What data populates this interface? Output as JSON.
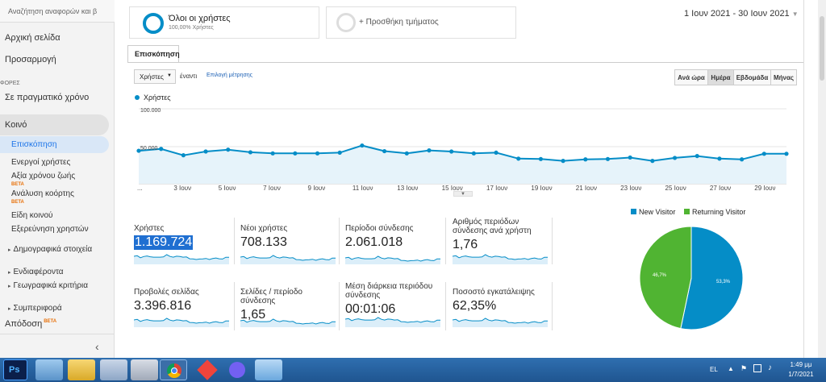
{
  "sidebar": {
    "search_placeholder": "Αναζήτηση αναφορών και β",
    "home": "Αρχική σελίδα",
    "customization": "Προσαρμογή",
    "reports_heading": "ΦΟΡΕΣ",
    "realtime": "Σε πραγματικό χρόνο",
    "audience": "Κοινό",
    "items": [
      {
        "label": "Επισκόπηση",
        "beta": ""
      },
      {
        "label": "Ενεργοί χρήστες",
        "beta": ""
      },
      {
        "label": "Αξία χρόνου ζωής",
        "beta": "BETA"
      },
      {
        "label": "Ανάλυση κοόρτης",
        "beta": "BETA"
      },
      {
        "label": "Είδη κοινού",
        "beta": ""
      },
      {
        "label": "Εξερεύνηση χρηστών",
        "beta": ""
      },
      {
        "label": "Δημογραφικά στοιχεία",
        "beta": ""
      },
      {
        "label": "Ενδιαφέροντα",
        "beta": ""
      },
      {
        "label": "Γεωγραφικά κριτήρια",
        "beta": ""
      },
      {
        "label": "Συμπεριφορά",
        "beta": ""
      }
    ],
    "attribution": "Απόδοση",
    "attribution_beta": "BETA",
    "collapse": "‹"
  },
  "segments": {
    "all_users": "Όλοι οι χρήστες",
    "all_users_sub": "100,00% Χρήστες",
    "add_segment": "+ Προσθήκη τμήματος"
  },
  "date_range": "1 Ιουν 2021 - 30 Ιουν 2021",
  "tab_overview": "Επισκόπηση",
  "metric_select": "Χρήστες",
  "vs_label": "έναντι",
  "choose_metric": "Επιλογή μέτρησης",
  "period_buttons": [
    "Ανά ώρα",
    "Ημέρα",
    "Εβδομάδα",
    "Μήνας"
  ],
  "period_selected": "Ημέρα",
  "chart_data": {
    "type": "area",
    "legend": "Χρήστες",
    "ytick_labels": [
      "100.000",
      "50.000"
    ],
    "ylim": [
      0,
      100000
    ],
    "x_labels": [
      "...",
      "3 Ιουν",
      "5 Ιουν",
      "7 Ιουν",
      "9 Ιουν",
      "11 Ιουν",
      "13 Ιουν",
      "15 Ιουν",
      "17 Ιουν",
      "19 Ιουν",
      "21 Ιουν",
      "23 Ιουν",
      "25 Ιουν",
      "27 Ιουν",
      "29 Ιουν"
    ],
    "values": [
      44000,
      46500,
      38000,
      43000,
      45500,
      42000,
      40500,
      40500,
      40500,
      41500,
      51000,
      43500,
      40500,
      44500,
      43000,
      40500,
      41500,
      33500,
      33000,
      30500,
      32500,
      33000,
      35000,
      30500,
      34500,
      37000,
      33500,
      32500,
      40000,
      40000
    ],
    "color": "#058dc7"
  },
  "kpis": [
    {
      "label": "Χρήστες",
      "value": "1.169.724"
    },
    {
      "label": "Νέοι χρήστες",
      "value": "708.133"
    },
    {
      "label": "Περίοδοι σύνδεσης",
      "value": "2.061.018"
    },
    {
      "label": "Αριθμός περιόδων σύνδεσης ανά χρήστη",
      "value": "1,76"
    },
    {
      "label": "Προβολές σελίδας",
      "value": "3.396.816"
    },
    {
      "label": "Σελίδες / περίοδο σύνδεσης",
      "value": "1,65"
    },
    {
      "label": "Μέση διάρκεια περιόδου σύνδεσης",
      "value": "00:01:06"
    },
    {
      "label": "Ποσοστό εγκατάλειψης",
      "value": "62,35%"
    }
  ],
  "pie_data": {
    "type": "pie",
    "legend": [
      "New Visitor",
      "Returning Visitor"
    ],
    "values": [
      53.3,
      46.7
    ],
    "labels": [
      "53,3%",
      "46,7%"
    ],
    "colors": [
      "#058dc7",
      "#50b432"
    ]
  },
  "taskbar": {
    "lang": "EL",
    "time": "1:49 μμ",
    "date": "1/7/2021"
  }
}
